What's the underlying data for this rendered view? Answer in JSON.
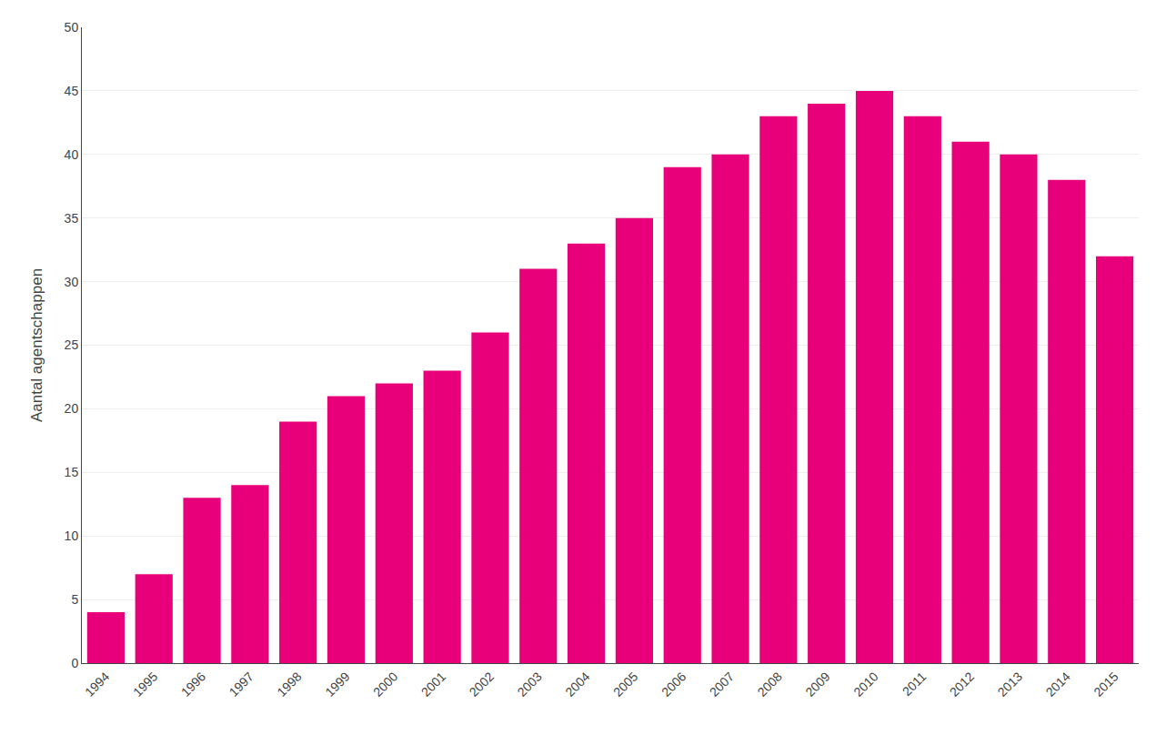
{
  "chart_data": {
    "type": "bar",
    "categories": [
      "1994",
      "1995",
      "1996",
      "1997",
      "1998",
      "1999",
      "2000",
      "2001",
      "2002",
      "2003",
      "2004",
      "2005",
      "2006",
      "2007",
      "2008",
      "2009",
      "2010",
      "2011",
      "2012",
      "2013",
      "2014",
      "2015"
    ],
    "values": [
      4,
      7,
      13,
      14,
      19,
      21,
      22,
      23,
      26,
      31,
      33,
      35,
      39,
      40,
      43,
      44,
      45,
      43,
      41,
      40,
      38,
      32
    ],
    "color": "#E8007A",
    "ylabel": "Aantal agentschappen",
    "ylim": [
      0,
      50
    ],
    "yticks": [
      0,
      5,
      10,
      15,
      20,
      25,
      30,
      35,
      40,
      45,
      50
    ],
    "grid": true
  }
}
